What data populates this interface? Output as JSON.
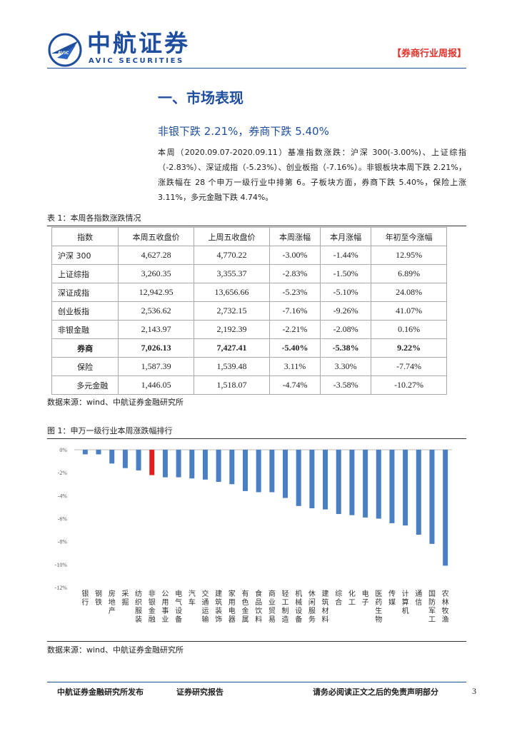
{
  "header": {
    "logo_cn": "中航证券",
    "logo_en": "AVIC SECURITIES",
    "logo_emblem_text": "AVIC",
    "report_tag": "【券商行业周报】"
  },
  "section": {
    "title": "一、市场表现",
    "subtitle": "非银下跌 2.21%，券商下跌 5.40%",
    "paragraph": "本周（2020.09.07-2020.09.11）基准指数涨跌：沪深 300(-3.00%)、上证综指（-2.83%）、深证成指（-5.23%）、创业板指（-7.16%）。非银板块本周下跌 2.21%，涨跌幅在 28 个申万一级行业中排第 6。子板块方面，券商下跌 5.40%，保险上涨 3.11%，多元金融下跌 4.74%。"
  },
  "table": {
    "caption": "表 1：本周各指数涨跌情况",
    "headers": [
      "指数",
      "本周五收盘价",
      "上周五收盘价",
      "本周涨幅",
      "本月涨幅",
      "年初至今涨幅"
    ],
    "rows": [
      [
        "沪深 300",
        "4,627.28",
        "4,770.22",
        "-3.00%",
        "-1.44%",
        "12.95%"
      ],
      [
        "上证综指",
        "3,260.35",
        "3,355.37",
        "-2.83%",
        "-1.50%",
        "6.89%"
      ],
      [
        "深证成指",
        "12,942.95",
        "13,656.66",
        "-5.23%",
        "-5.10%",
        "24.08%"
      ],
      [
        "创业板指",
        "2,536.62",
        "2,732.15",
        "-7.16%",
        "-9.26%",
        "41.07%"
      ],
      [
        "非银金融",
        "2,143.97",
        "2,192.39",
        "-2.21%",
        "-2.08%",
        "0.16%"
      ],
      [
        "券商",
        "7,026.13",
        "7,427.41",
        "-5.40%",
        "-5.38%",
        "9.22%"
      ],
      [
        "保险",
        "1,587.39",
        "1,539.48",
        "3.11%",
        "3.30%",
        "-7.74%"
      ],
      [
        "多元金融",
        "1,446.05",
        "1,518.07",
        "-4.74%",
        "-3.58%",
        "-10.27%"
      ]
    ],
    "source": "数据来源：wind、中航证券金融研究所"
  },
  "figure": {
    "caption": "图 1：申万一级行业本周涨跌幅排行",
    "source": "数据来源：wind、中航证券金融研究所"
  },
  "chart_data": {
    "type": "bar",
    "title": "申万一级行业本周涨跌幅排行",
    "categories": [
      "银行",
      "钢铁",
      "房地产",
      "采掘",
      "纺织服装",
      "非银金融",
      "公用事业",
      "电气设备",
      "汽车",
      "交通运输",
      "建筑装饰",
      "家用电器",
      "有色金属",
      "食品饮料",
      "商业贸易",
      "轻工制造",
      "机械设备",
      "休闲服务",
      "建筑材料",
      "综合",
      "化工",
      "电子",
      "医药生物",
      "传媒",
      "计算机",
      "通信",
      "国防军工",
      "农林牧渔"
    ],
    "values": [
      -0.4,
      -0.4,
      -1.2,
      -1.6,
      -1.8,
      -2.21,
      -2.4,
      -2.4,
      -2.5,
      -2.6,
      -2.8,
      -3.0,
      -3.6,
      -3.7,
      -3.7,
      -4.2,
      -4.9,
      -5.1,
      -5.2,
      -5.6,
      -5.7,
      -5.9,
      -6.0,
      -6.4,
      -6.6,
      -7.4,
      -8.2,
      -10.1
    ],
    "highlight": "非银金融",
    "bar_color": "#4a7fc1",
    "highlight_color": "#e02020",
    "ylim": [
      -12,
      0
    ],
    "yticks": [
      "0%",
      "-2%",
      "-4%",
      "-6%",
      "-8%",
      "-10%",
      "-12%"
    ],
    "grid": false,
    "legend": "none"
  },
  "footer": {
    "publisher": "中航证券金融研究所发布",
    "report_type": "证券研究报告",
    "disclaimer": "请务必阅读正文之后的免责声明部分",
    "page_number": "3"
  },
  "colors": {
    "brand_blue": "#1f4e9e",
    "tag_red": "#e0322b"
  }
}
